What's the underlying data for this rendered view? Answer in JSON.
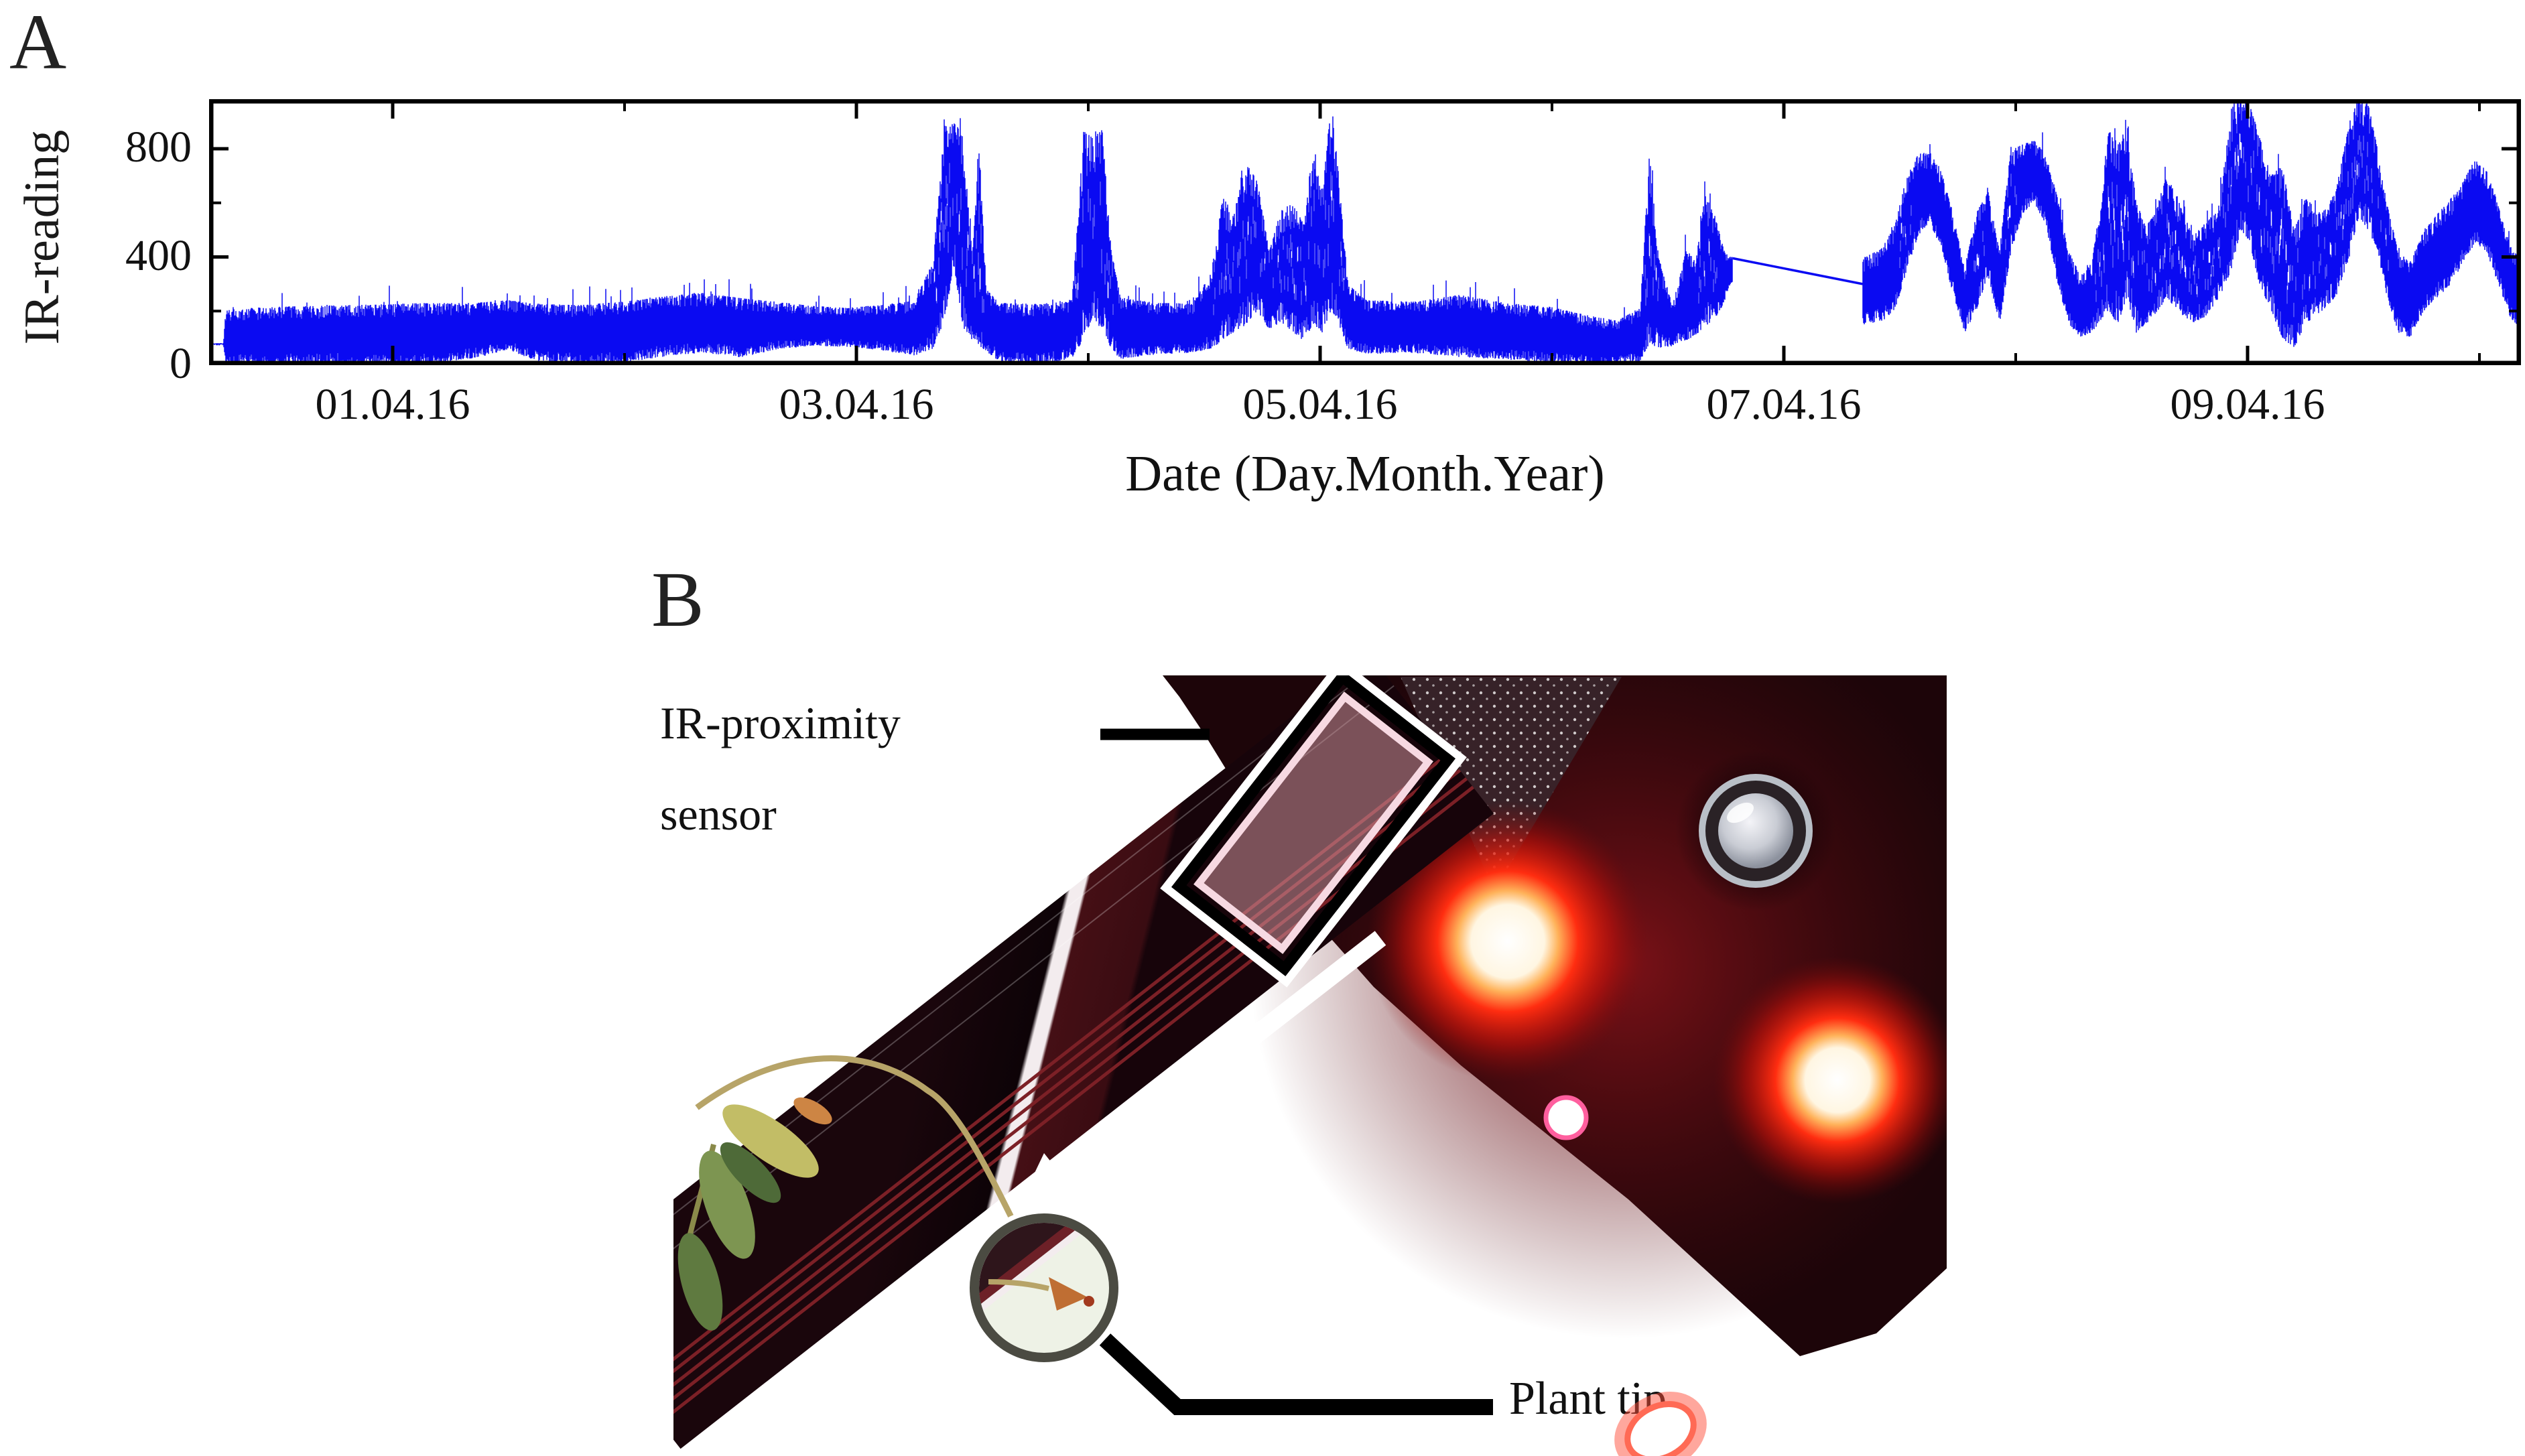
{
  "figure": {
    "panel_a_label": "A",
    "panel_b_label": "B"
  },
  "chart_data": {
    "type": "line",
    "title": "",
    "series": [
      {
        "name": "IR-reading",
        "color": "#0a0af2"
      }
    ],
    "xlabel": "Date (Day.Month.Year)",
    "ylabel": "IR-reading",
    "ylim": [
      0,
      1000
    ],
    "y_major_ticks": [
      0,
      400,
      800
    ],
    "y_major_tick_labels": [
      "0",
      "400",
      "800"
    ],
    "y_minor_ticks": [
      200,
      600,
      1000
    ],
    "x_days_origin": "31.03.16",
    "xlim_days": [
      0.21,
      10.18
    ],
    "x_major_ticks_days": [
      1,
      3,
      5,
      7,
      9
    ],
    "x_major_tick_labels": [
      "01.04.16",
      "03.04.16",
      "05.04.16",
      "07.04.16",
      "09.04.16"
    ],
    "x_minor_ticks_days": [
      2,
      4,
      6,
      8,
      10
    ],
    "grid": false,
    "legend": "none",
    "data_gap_line": {
      "from_day": 6.78,
      "from_value": 395,
      "to_day": 7.34,
      "to_value": 300
    },
    "envelope_day_lo_hi": [
      [
        0.21,
        74,
        80
      ],
      [
        0.27,
        72,
        82
      ],
      [
        0.28,
        0,
        205
      ],
      [
        0.45,
        0,
        215
      ],
      [
        0.7,
        3,
        220
      ],
      [
        0.95,
        0,
        225
      ],
      [
        1.15,
        0,
        230
      ],
      [
        1.35,
        25,
        230
      ],
      [
        1.5,
        55,
        240
      ],
      [
        1.62,
        15,
        228
      ],
      [
        1.8,
        0,
        222
      ],
      [
        2.0,
        8,
        235
      ],
      [
        2.2,
        35,
        258
      ],
      [
        2.35,
        45,
        268
      ],
      [
        2.5,
        28,
        248
      ],
      [
        2.65,
        55,
        235
      ],
      [
        2.8,
        70,
        220
      ],
      [
        2.95,
        68,
        212
      ],
      [
        3.1,
        55,
        222
      ],
      [
        3.25,
        35,
        238
      ],
      [
        3.33,
        60,
        380
      ],
      [
        3.38,
        160,
        885
      ],
      [
        3.42,
        370,
        905
      ],
      [
        3.46,
        140,
        845
      ],
      [
        3.5,
        90,
        400
      ],
      [
        3.53,
        70,
        815
      ],
      [
        3.56,
        50,
        280
      ],
      [
        3.62,
        10,
        230
      ],
      [
        3.8,
        0,
        226
      ],
      [
        3.93,
        25,
        245
      ],
      [
        3.98,
        90,
        865
      ],
      [
        4.02,
        180,
        840
      ],
      [
        4.06,
        120,
        870
      ],
      [
        4.1,
        60,
        420
      ],
      [
        4.14,
        20,
        250
      ],
      [
        4.3,
        40,
        230
      ],
      [
        4.45,
        45,
        228
      ],
      [
        4.53,
        60,
        340
      ],
      [
        4.58,
        90,
        620
      ],
      [
        4.63,
        120,
        560
      ],
      [
        4.68,
        150,
        750
      ],
      [
        4.73,
        200,
        680
      ],
      [
        4.78,
        130,
        420
      ],
      [
        4.83,
        160,
        570
      ],
      [
        4.88,
        120,
        600
      ],
      [
        4.93,
        90,
        520
      ],
      [
        4.97,
        150,
        825
      ],
      [
        5.01,
        120,
        640
      ],
      [
        5.05,
        200,
        990
      ],
      [
        5.08,
        150,
        700
      ],
      [
        5.12,
        60,
        300
      ],
      [
        5.2,
        40,
        240
      ],
      [
        5.4,
        45,
        235
      ],
      [
        5.6,
        30,
        260
      ],
      [
        5.8,
        20,
        230
      ],
      [
        6.0,
        10,
        215
      ],
      [
        6.15,
        0,
        185
      ],
      [
        6.28,
        0,
        165
      ],
      [
        6.38,
        10,
        210
      ],
      [
        6.42,
        80,
        790
      ],
      [
        6.46,
        60,
        400
      ],
      [
        6.52,
        70,
        220
      ],
      [
        6.58,
        90,
        430
      ],
      [
        6.62,
        110,
        380
      ],
      [
        6.66,
        140,
        630
      ],
      [
        6.7,
        170,
        560
      ],
      [
        6.74,
        220,
        430
      ],
      [
        6.77,
        300,
        400
      ],
      [
        7.35,
        150,
        400
      ],
      [
        7.42,
        160,
        430
      ],
      [
        7.48,
        200,
        520
      ],
      [
        7.53,
        350,
        700
      ],
      [
        7.58,
        480,
        780
      ],
      [
        7.63,
        520,
        790
      ],
      [
        7.68,
        430,
        720
      ],
      [
        7.73,
        260,
        560
      ],
      [
        7.78,
        120,
        360
      ],
      [
        7.83,
        200,
        560
      ],
      [
        7.88,
        330,
        650
      ],
      [
        7.93,
        150,
        420
      ],
      [
        7.98,
        420,
        810
      ],
      [
        8.03,
        560,
        820
      ],
      [
        8.08,
        600,
        830
      ],
      [
        8.13,
        520,
        780
      ],
      [
        8.18,
        300,
        620
      ],
      [
        8.23,
        150,
        420
      ],
      [
        8.28,
        100,
        330
      ],
      [
        8.33,
        120,
        380
      ],
      [
        8.4,
        200,
        870
      ],
      [
        8.44,
        150,
        820
      ],
      [
        8.48,
        250,
        880
      ],
      [
        8.52,
        120,
        600
      ],
      [
        8.56,
        150,
        520
      ],
      [
        8.6,
        180,
        560
      ],
      [
        8.65,
        250,
        700
      ],
      [
        8.7,
        200,
        620
      ],
      [
        8.76,
        150,
        480
      ],
      [
        8.82,
        180,
        520
      ],
      [
        8.88,
        250,
        600
      ],
      [
        8.93,
        350,
        950
      ],
      [
        8.97,
        500,
        990
      ],
      [
        9.01,
        450,
        960
      ],
      [
        9.05,
        300,
        850
      ],
      [
        9.1,
        200,
        700
      ],
      [
        9.15,
        100,
        740
      ],
      [
        9.2,
        60,
        500
      ],
      [
        9.25,
        150,
        620
      ],
      [
        9.32,
        200,
        560
      ],
      [
        9.38,
        250,
        640
      ],
      [
        9.44,
        400,
        900
      ],
      [
        9.48,
        550,
        990
      ],
      [
        9.52,
        500,
        970
      ],
      [
        9.56,
        420,
        800
      ],
      [
        9.6,
        250,
        600
      ],
      [
        9.65,
        120,
        420
      ],
      [
        9.7,
        100,
        380
      ],
      [
        9.76,
        200,
        500
      ],
      [
        9.82,
        250,
        560
      ],
      [
        9.88,
        300,
        620
      ],
      [
        9.93,
        380,
        680
      ],
      [
        9.98,
        450,
        760
      ],
      [
        10.03,
        420,
        720
      ],
      [
        10.08,
        300,
        600
      ],
      [
        10.13,
        180,
        450
      ],
      [
        10.18,
        120,
        380
      ]
    ]
  },
  "panel_b": {
    "sensor_label_line1": "IR-proximity",
    "sensor_label_line2": "sensor",
    "plant_tip_label": "Plant tip",
    "annotation_colors": {
      "sensor_box_outer": "#000000",
      "sensor_box_mid": "#ffffff",
      "sensor_box_inner": "#f7d9e2",
      "sensor_box_fill": "rgba(205,145,155,0.55)",
      "callout_line": "#000000",
      "arrow": "#ffffff",
      "magnifier_ring": "#4b4b42"
    }
  }
}
